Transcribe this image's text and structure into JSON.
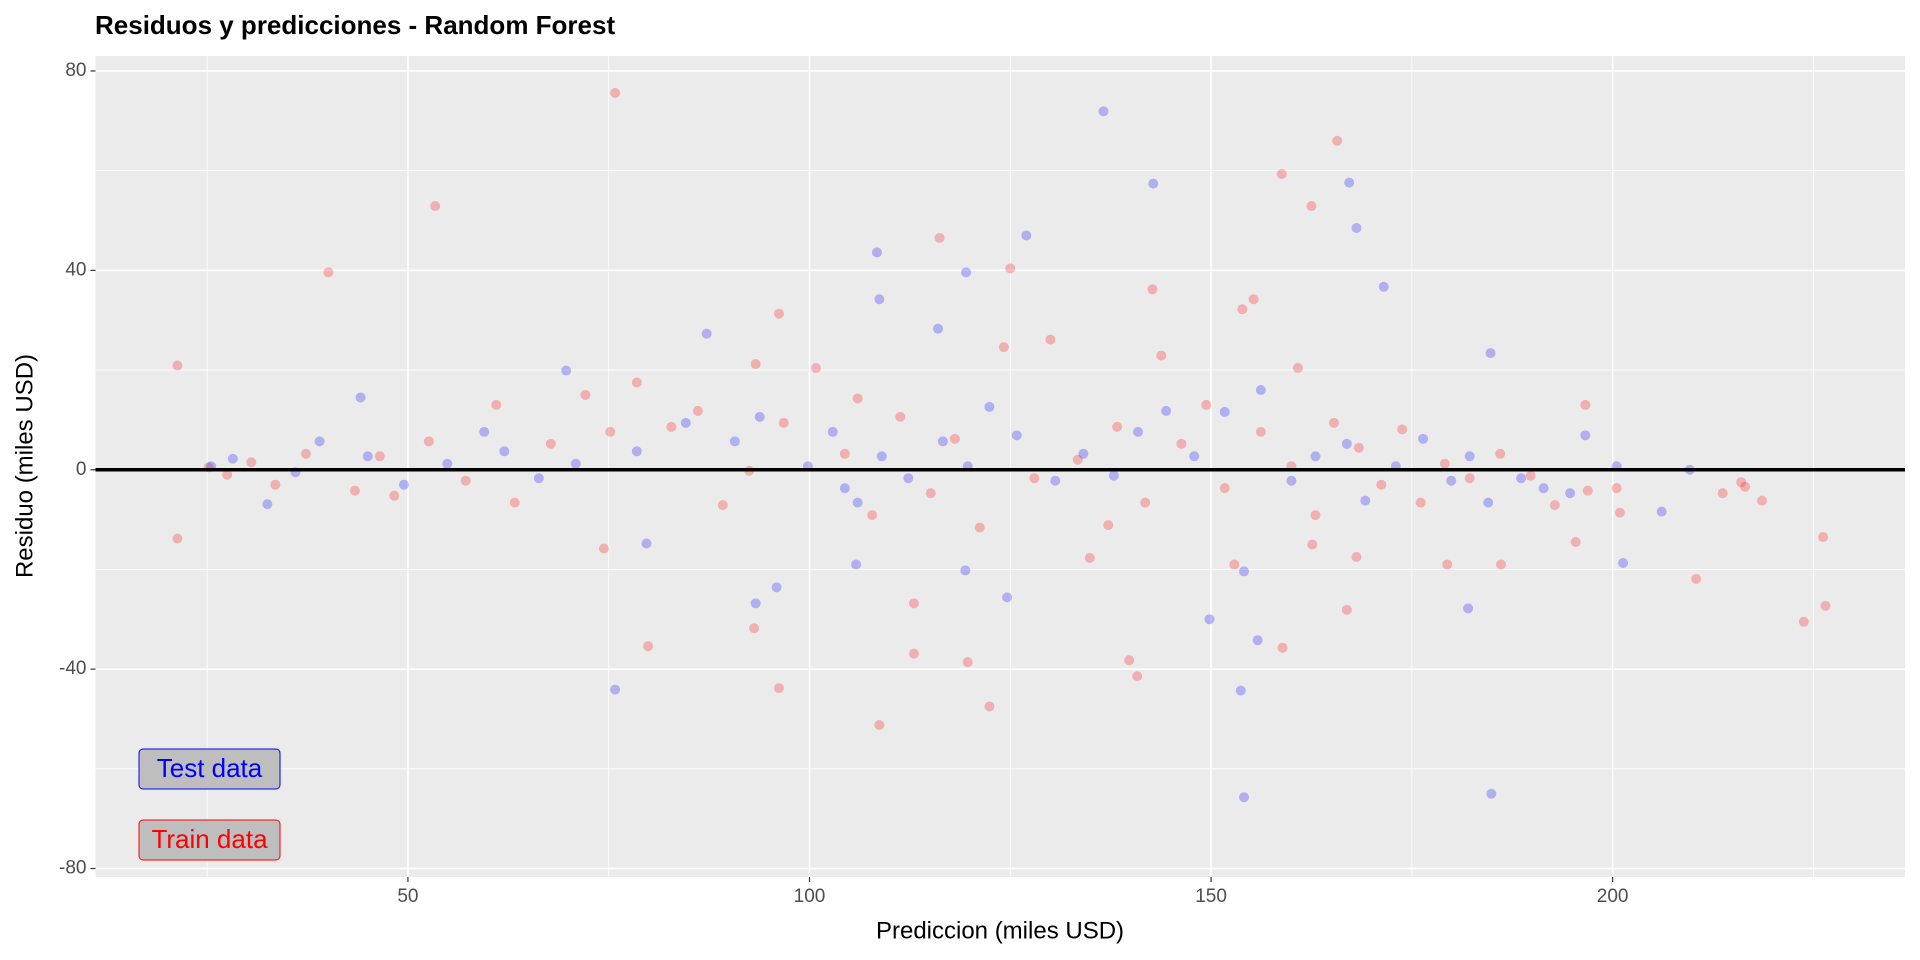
{
  "chart_data": {
    "type": "scatter",
    "title": "Residuos y predicciones - Random Forest",
    "x_label": "Prediccion (miles USD)",
    "y_label": "Residuo (miles USD)",
    "xlim": [
      11.1,
      236.4
    ],
    "ylim": [
      -81.7,
      83
    ],
    "xticks": [
      50,
      100,
      150,
      200
    ],
    "yticks": [
      -80,
      -40,
      0,
      40,
      80
    ],
    "x_minor_grid": [
      25,
      75,
      125,
      175,
      225
    ],
    "y_minor_grid": [
      -60,
      -20,
      20,
      60
    ],
    "grid": true,
    "hline": 0,
    "alpha": 0.25,
    "series": [
      {
        "name": "Train data",
        "color": "#ff0000",
        "x": [
          21.3,
          21.3,
          40.1,
          53.4,
          75.8,
          48.3,
          74.4,
          79.9,
          96.2,
          96.2,
          93.3,
          93.1,
          108.7,
          113.0,
          113.0,
          116.2,
          125.0,
          122.4,
          119.7,
          142.7,
          139.8,
          140.8,
          158.8,
          165.7,
          162.5,
          155.3,
          158.9,
          162.6,
          166.9,
          168.1,
          200.5,
          200.9,
          210.4,
          213.7,
          216.0,
          216.5,
          218.6,
          223.8,
          226.5,
          226.2,
          179.4,
          186.1,
          195.4,
          196.9,
          137.2,
          160.8,
          153.9,
          25.2,
          27.5,
          30.5,
          33.5,
          37.3,
          43.4,
          46.5,
          52.6,
          57.2,
          61.0,
          63.3,
          67.8,
          72.1,
          75.2,
          78.5,
          82.8,
          86.1,
          89.2,
          92.5,
          96.8,
          100.8,
          104.4,
          106.0,
          107.8,
          111.3,
          115.1,
          118.1,
          121.2,
          124.2,
          128.0,
          130.0,
          133.4,
          134.9,
          138.3,
          141.8,
          143.8,
          146.3,
          149.4,
          151.7,
          152.9,
          156.2,
          160.0,
          163.0,
          165.3,
          168.4,
          171.2,
          173.8,
          176.1,
          179.1,
          182.2,
          186.0,
          189.8,
          192.8,
          196.6
        ],
        "values": [
          20.9,
          -13.8,
          39.6,
          52.9,
          75.6,
          -5.2,
          -15.8,
          -35.4,
          -43.8,
          31.3,
          21.2,
          -31.8,
          -51.2,
          -26.8,
          -36.9,
          46.5,
          40.4,
          -47.5,
          -38.6,
          36.2,
          -38.2,
          -41.4,
          59.3,
          66.0,
          52.9,
          34.2,
          -35.7,
          -15.0,
          -28.1,
          -17.5,
          -3.7,
          -8.6,
          -21.9,
          -4.7,
          -2.5,
          -3.4,
          -6.2,
          -30.5,
          -27.3,
          -13.5,
          -19.0,
          -19.0,
          -14.5,
          -4.2,
          -11.1,
          20.4,
          32.2,
          0.5,
          -1.0,
          1.5,
          -3.0,
          3.2,
          -4.2,
          2.7,
          5.7,
          -2.2,
          13.0,
          -6.6,
          5.2,
          15.0,
          7.6,
          17.5,
          8.6,
          11.8,
          -7.1,
          -0.2,
          9.4,
          20.4,
          3.2,
          14.3,
          -9.1,
          10.6,
          -4.7,
          6.2,
          -11.6,
          24.6,
          -1.7,
          26.1,
          2.0,
          -17.7,
          8.6,
          -6.6,
          22.9,
          5.2,
          13.0,
          -3.7,
          -19.0,
          7.6,
          0.7,
          -9.1,
          9.4,
          4.4,
          -3.0,
          8.1,
          -6.6,
          1.2,
          -1.7,
          3.2,
          -1.2,
          -7.1,
          13.0
        ]
      },
      {
        "name": "Test data",
        "color": "#0000ff",
        "x": [
          171.5,
          142.8,
          154.1,
          184.9,
          153.7,
          75.8,
          168.1,
          167.2,
          136.6,
          127.0,
          108.4,
          108.7,
          116.0,
          184.8,
          196.6,
          201.3,
          206.1,
          182.0,
          149.8,
          155.8,
          154.1,
          119.4,
          124.6,
          95.9,
          93.3,
          105.8,
          79.7,
          32.5,
          44.1,
          69.7,
          87.2,
          119.5,
          104.4,
          25.5,
          28.2,
          36.0,
          39.0,
          45.0,
          49.5,
          54.9,
          59.5,
          62.0,
          66.3,
          70.9,
          78.5,
          84.6,
          90.7,
          93.8,
          99.8,
          102.9,
          106.0,
          109.0,
          112.3,
          116.6,
          119.7,
          122.4,
          125.8,
          130.6,
          134.1,
          137.9,
          140.9,
          144.4,
          147.9,
          151.7,
          156.2,
          160.0,
          163.0,
          166.9,
          169.2,
          173.0,
          176.4,
          179.9,
          182.2,
          184.5,
          188.6,
          191.4,
          194.7,
          200.5,
          209.6
        ],
        "values": [
          36.7,
          57.4,
          -65.7,
          -65.0,
          -44.3,
          -44.1,
          48.5,
          57.6,
          71.9,
          47.0,
          43.6,
          34.2,
          28.3,
          23.4,
          6.9,
          -18.7,
          -8.4,
          -27.8,
          -30.0,
          -34.2,
          -20.4,
          -20.2,
          -25.6,
          -23.6,
          -26.8,
          -19.0,
          -14.8,
          -6.9,
          14.5,
          19.9,
          27.3,
          39.6,
          -3.7,
          0.7,
          2.2,
          -0.5,
          5.7,
          2.7,
          -3.0,
          1.2,
          7.6,
          3.7,
          -1.7,
          1.2,
          3.7,
          9.4,
          5.7,
          10.6,
          0.7,
          7.6,
          -6.6,
          2.7,
          -1.7,
          5.7,
          0.7,
          12.6,
          6.9,
          -2.2,
          3.2,
          -1.2,
          7.6,
          11.8,
          2.7,
          11.6,
          16.0,
          -2.2,
          2.7,
          5.2,
          -6.2,
          0.7,
          6.2,
          -2.2,
          2.7,
          -6.6,
          -1.7,
          -3.7,
          -4.7,
          0.7,
          0.0
        ]
      }
    ]
  }
}
